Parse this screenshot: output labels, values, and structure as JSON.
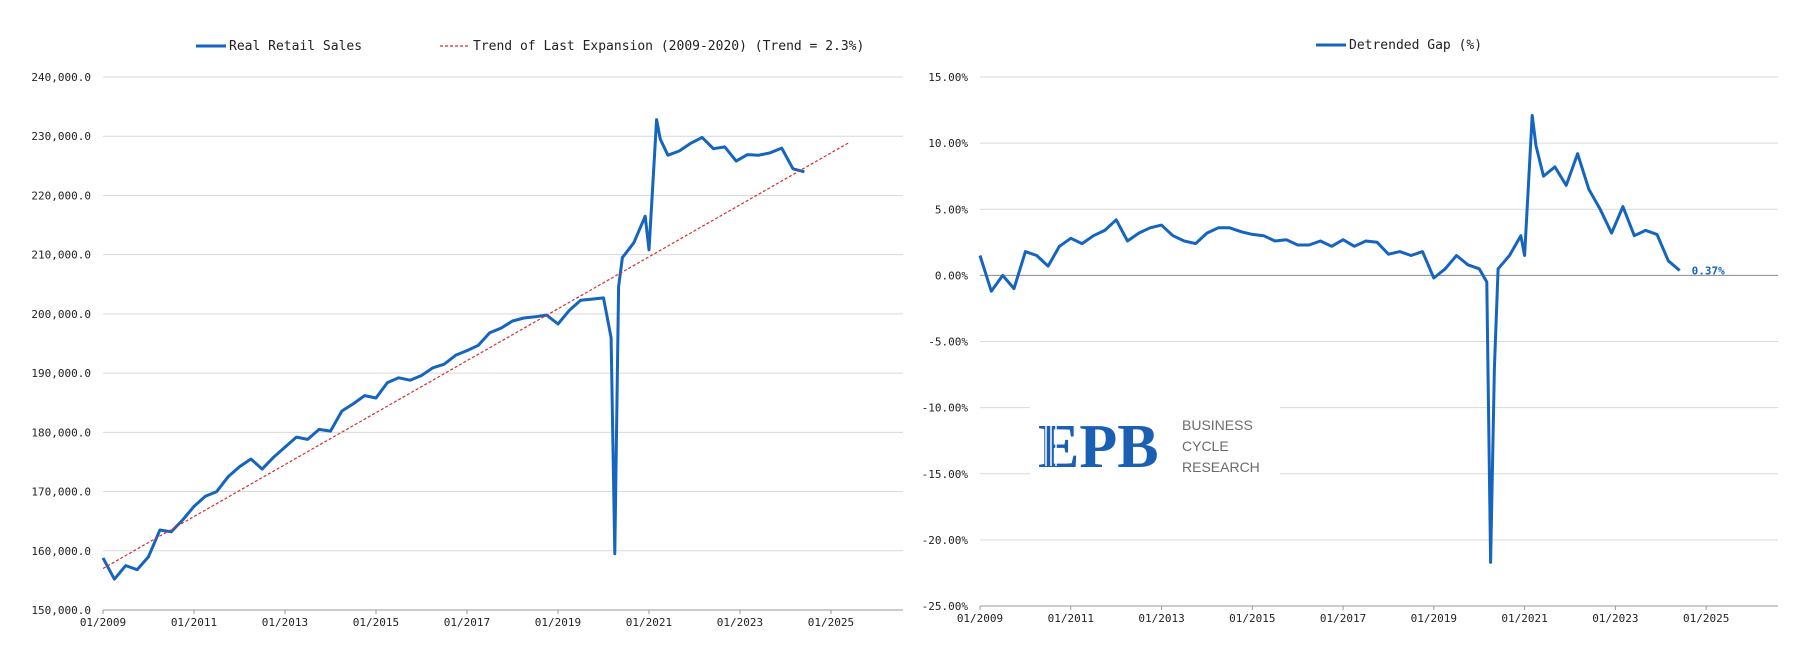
{
  "chart_data": [
    {
      "type": "line",
      "legend": [
        "Real Retail Sales",
        "Trend of Last Expansion (2009-2020) (Trend = 2.3%)"
      ],
      "legend_placement": "top",
      "y_ticks": [
        "240,000.0",
        "230,000.0",
        "220,000.0",
        "210,000.0",
        "200,000.0",
        "190,000.0",
        "180,000.0",
        "170,000.0",
        "160,000.0",
        "150,000.0"
      ],
      "x_ticks": [
        "01/2009",
        "01/2011",
        "01/2013",
        "01/2015",
        "01/2017",
        "01/2019",
        "01/2021",
        "01/2023",
        "01/2025"
      ],
      "xlim": [
        "01/2009",
        "08/2026"
      ],
      "ylim": [
        150000,
        240000
      ],
      "grid": true,
      "colors": {
        "line": "#1565c0",
        "trend": "#d32f2f"
      },
      "series": [
        {
          "name": "Real Retail Sales",
          "x": [
            "01/2009",
            "04/2009",
            "07/2009",
            "10/2009",
            "01/2010",
            "04/2010",
            "07/2010",
            "10/2010",
            "01/2011",
            "04/2011",
            "07/2011",
            "10/2011",
            "01/2012",
            "04/2012",
            "07/2012",
            "10/2012",
            "01/2013",
            "04/2013",
            "07/2013",
            "10/2013",
            "01/2014",
            "04/2014",
            "07/2014",
            "10/2014",
            "01/2015",
            "04/2015",
            "07/2015",
            "10/2015",
            "01/2016",
            "04/2016",
            "07/2016",
            "10/2016",
            "01/2017",
            "04/2017",
            "07/2017",
            "10/2017",
            "01/2018",
            "04/2018",
            "07/2018",
            "10/2018",
            "01/2019",
            "04/2019",
            "07/2019",
            "10/2019",
            "01/2020",
            "03/2020",
            "04/2020",
            "05/2020",
            "06/2020",
            "09/2020",
            "12/2020",
            "01/2021",
            "03/2021",
            "04/2021",
            "06/2021",
            "09/2021",
            "12/2021",
            "03/2022",
            "06/2022",
            "09/2022",
            "12/2022",
            "03/2023",
            "06/2023",
            "09/2023",
            "12/2023",
            "03/2024",
            "06/2024"
          ],
          "values": [
            158800,
            155200,
            157500,
            156800,
            159000,
            163500,
            163200,
            165200,
            167500,
            169200,
            170000,
            172500,
            174200,
            175500,
            173800,
            175800,
            177500,
            179200,
            178800,
            180500,
            180200,
            183600,
            184800,
            186200,
            185800,
            188400,
            189200,
            188800,
            189600,
            190900,
            191500,
            193000,
            193800,
            194700,
            196800,
            197600,
            198800,
            199300,
            199500,
            199800,
            198300,
            200600,
            202300,
            202500,
            202700,
            196000,
            159500,
            204600,
            209500,
            212000,
            216500,
            210800,
            232800,
            229500,
            226800,
            227500,
            228800,
            229800,
            227900,
            228200,
            225800,
            226900,
            226800,
            227200,
            228000,
            224500,
            224000
          ]
        },
        {
          "name": "Trend of Last Expansion (2009-2020) (Trend = 2.3%)",
          "x": [
            "01/2009",
            "06/2025"
          ],
          "values": [
            157000,
            229000
          ]
        }
      ]
    },
    {
      "type": "line",
      "legend": [
        "Detrended Gap (%)"
      ],
      "legend_placement": "top",
      "y_ticks": [
        "15.00%",
        "10.00%",
        "5.00%",
        "0.00%",
        "-5.00%",
        "-10.00%",
        "-15.00%",
        "-20.00%",
        "-25.00%"
      ],
      "x_ticks": [
        "01/2009",
        "01/2011",
        "01/2013",
        "01/2015",
        "01/2017",
        "01/2019",
        "01/2021",
        "01/2023",
        "01/2025"
      ],
      "xlim": [
        "01/2009",
        "08/2026"
      ],
      "ylim": [
        -25,
        15
      ],
      "grid": true,
      "last_value_label": "0.37%",
      "colors": {
        "line": "#1565c0"
      },
      "series": [
        {
          "name": "Detrended Gap (%)",
          "x": [
            "01/2009",
            "04/2009",
            "07/2009",
            "10/2009",
            "01/2010",
            "04/2010",
            "07/2010",
            "10/2010",
            "01/2011",
            "04/2011",
            "07/2011",
            "10/2011",
            "01/2012",
            "04/2012",
            "07/2012",
            "10/2012",
            "01/2013",
            "04/2013",
            "07/2013",
            "10/2013",
            "01/2014",
            "04/2014",
            "07/2014",
            "10/2014",
            "01/2015",
            "04/2015",
            "07/2015",
            "10/2015",
            "01/2016",
            "04/2016",
            "07/2016",
            "10/2016",
            "01/2017",
            "04/2017",
            "07/2017",
            "10/2017",
            "01/2018",
            "04/2018",
            "07/2018",
            "10/2018",
            "01/2019",
            "04/2019",
            "07/2019",
            "10/2019",
            "01/2020",
            "03/2020",
            "04/2020",
            "05/2020",
            "06/2020",
            "09/2020",
            "12/2020",
            "01/2021",
            "03/2021",
            "04/2021",
            "06/2021",
            "09/2021",
            "12/2021",
            "03/2022",
            "06/2022",
            "09/2022",
            "12/2022",
            "03/2023",
            "06/2023",
            "09/2023",
            "12/2023",
            "03/2024",
            "06/2024"
          ],
          "values": [
            1.5,
            -1.2,
            0.0,
            -1.0,
            1.8,
            1.5,
            0.7,
            2.2,
            2.8,
            2.4,
            3.0,
            3.4,
            4.2,
            2.6,
            3.2,
            3.6,
            3.8,
            3.0,
            2.6,
            2.4,
            3.2,
            3.6,
            3.6,
            3.3,
            3.1,
            3.0,
            2.6,
            2.7,
            2.3,
            2.3,
            2.6,
            2.2,
            2.7,
            2.2,
            2.6,
            2.5,
            1.6,
            1.8,
            1.5,
            1.8,
            -0.2,
            0.5,
            1.5,
            0.8,
            0.5,
            -0.5,
            -21.7,
            -7.0,
            0.5,
            1.5,
            3.0,
            1.5,
            12.1,
            9.8,
            7.5,
            8.2,
            6.8,
            9.2,
            6.5,
            5.0,
            3.2,
            5.2,
            3.0,
            3.4,
            3.1,
            1.1,
            0.37
          ]
        }
      ]
    }
  ],
  "logo": {
    "letters": "EPB",
    "line1": "BUSINESS",
    "line2": "CYCLE",
    "line3": "RESEARCH"
  }
}
